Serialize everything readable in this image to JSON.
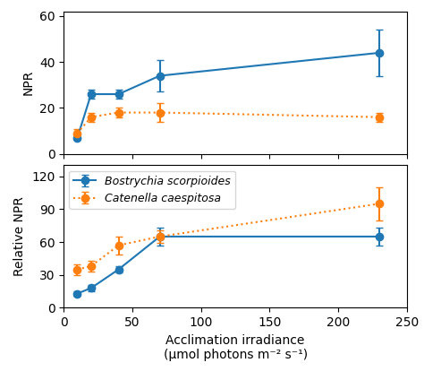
{
  "chart_data": [
    {
      "type": "line",
      "x": [
        10,
        20,
        40,
        70,
        230
      ],
      "series": [
        {
          "name": "Bostrychia scorpioides",
          "values": [
            7,
            26,
            26,
            34,
            44
          ],
          "errors": [
            1,
            2,
            2,
            7,
            10
          ],
          "marker": "o",
          "line_style": "solid"
        },
        {
          "name": "Catenella caespitosa",
          "values": [
            9,
            16,
            18,
            18,
            16
          ],
          "errors": [
            2,
            2,
            2,
            4,
            2
          ],
          "marker": "o",
          "line_style": "dotted"
        }
      ],
      "ylabel": "NPR",
      "xlim": [
        0,
        250
      ],
      "xticks": [
        0,
        50,
        100,
        150,
        200,
        250
      ],
      "ylim": [
        0,
        62
      ],
      "yticks": [
        0,
        20,
        40,
        60
      ],
      "tick_labels": "y"
    },
    {
      "type": "line",
      "x": [
        10,
        20,
        40,
        70,
        230
      ],
      "series": [
        {
          "name": "Bostrychia scorpioides",
          "values": [
            13,
            18,
            35,
            65,
            65
          ],
          "errors": [
            2,
            3,
            3,
            8,
            8
          ],
          "marker": "o",
          "line_style": "solid"
        },
        {
          "name": "Catenella caespitosa",
          "values": [
            35,
            38,
            57,
            65,
            95
          ],
          "errors": [
            5,
            5,
            8,
            6,
            15
          ],
          "marker": "o",
          "line_style": "dotted"
        }
      ],
      "ylabel": "Relative NPR",
      "xlabel": "Acclimation irradiance\n(μmol photons m⁻² s⁻¹)",
      "xlim": [
        0,
        250
      ],
      "xticks": [
        0,
        50,
        100,
        150,
        200,
        250
      ],
      "ylim": [
        0,
        130
      ],
      "yticks": [
        0,
        30,
        60,
        90,
        120
      ],
      "legend": "upper left"
    }
  ]
}
